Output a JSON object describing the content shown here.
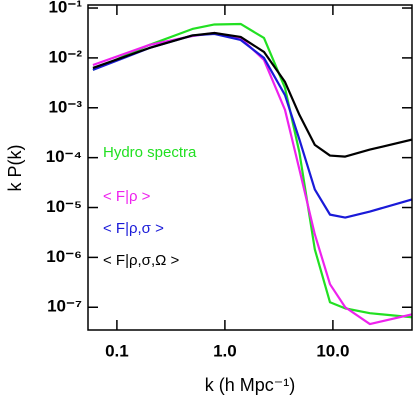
{
  "chart_data": {
    "type": "line",
    "xlabel": "k (h Mpc⁻¹)",
    "ylabel": "k P(k)",
    "xscale": "log",
    "yscale": "log",
    "xlim": [
      0.054,
      54
    ],
    "ylim": [
      3.5e-08,
      0.115
    ],
    "xticks": [
      0.1,
      {
        "value": 1,
        "label": "1.0"
      },
      {
        "value": 10,
        "label": "10.0"
      }
    ],
    "yticks": [
      {
        "value": 1e-07,
        "label": "10⁻⁷"
      },
      {
        "value": 1e-06,
        "label": "10⁻⁶"
      },
      {
        "value": 1e-05,
        "label": "10⁻⁵"
      },
      {
        "value": 0.0001,
        "label": "10⁻⁴"
      },
      {
        "value": 0.001,
        "label": "10⁻³"
      },
      {
        "value": 0.01,
        "label": "10⁻²"
      },
      {
        "value": 0.1,
        "label": "10⁻¹"
      }
    ],
    "legend": "inside-left",
    "x": [
      0.06,
      0.2,
      0.5,
      0.8,
      1.4,
      2.3,
      3.6,
      4.9,
      6.8,
      9.4,
      13,
      22,
      54
    ],
    "series": [
      {
        "name": "Hydro spectra",
        "color": "#22e022",
        "values": [
          0.00575,
          0.0182,
          0.038,
          0.0468,
          0.0479,
          0.0251,
          0.00251,
          0.000126,
          1.45e-06,
          1.26e-07,
          9.5e-08,
          7.6e-08,
          6.3e-08
        ]
      },
      {
        "name": "< F|ρ >",
        "color": "#ee22ee",
        "values": [
          0.0072,
          0.0182,
          0.0275,
          0.0316,
          0.0251,
          0.0091,
          0.00091,
          5.75e-05,
          2.9e-06,
          2.9e-07,
          1e-07,
          4.6e-08,
          7.2e-08
        ]
      },
      {
        "name": "< F|ρ,σ >",
        "color": "#1a1ad8",
        "values": [
          0.00575,
          0.0158,
          0.0282,
          0.0302,
          0.0229,
          0.01,
          0.0018,
          0.00023,
          2.3e-05,
          7.2e-06,
          6.3e-06,
          8.3e-06,
          1.45e-05
        ]
      },
      {
        "name": "< F|ρ,σ,Ω >",
        "color": "#000000",
        "values": [
          0.0063,
          0.0158,
          0.0282,
          0.0316,
          0.0263,
          0.0132,
          0.0033,
          0.00072,
          0.00018,
          0.00011,
          0.000105,
          0.000145,
          0.00023
        ]
      }
    ]
  }
}
